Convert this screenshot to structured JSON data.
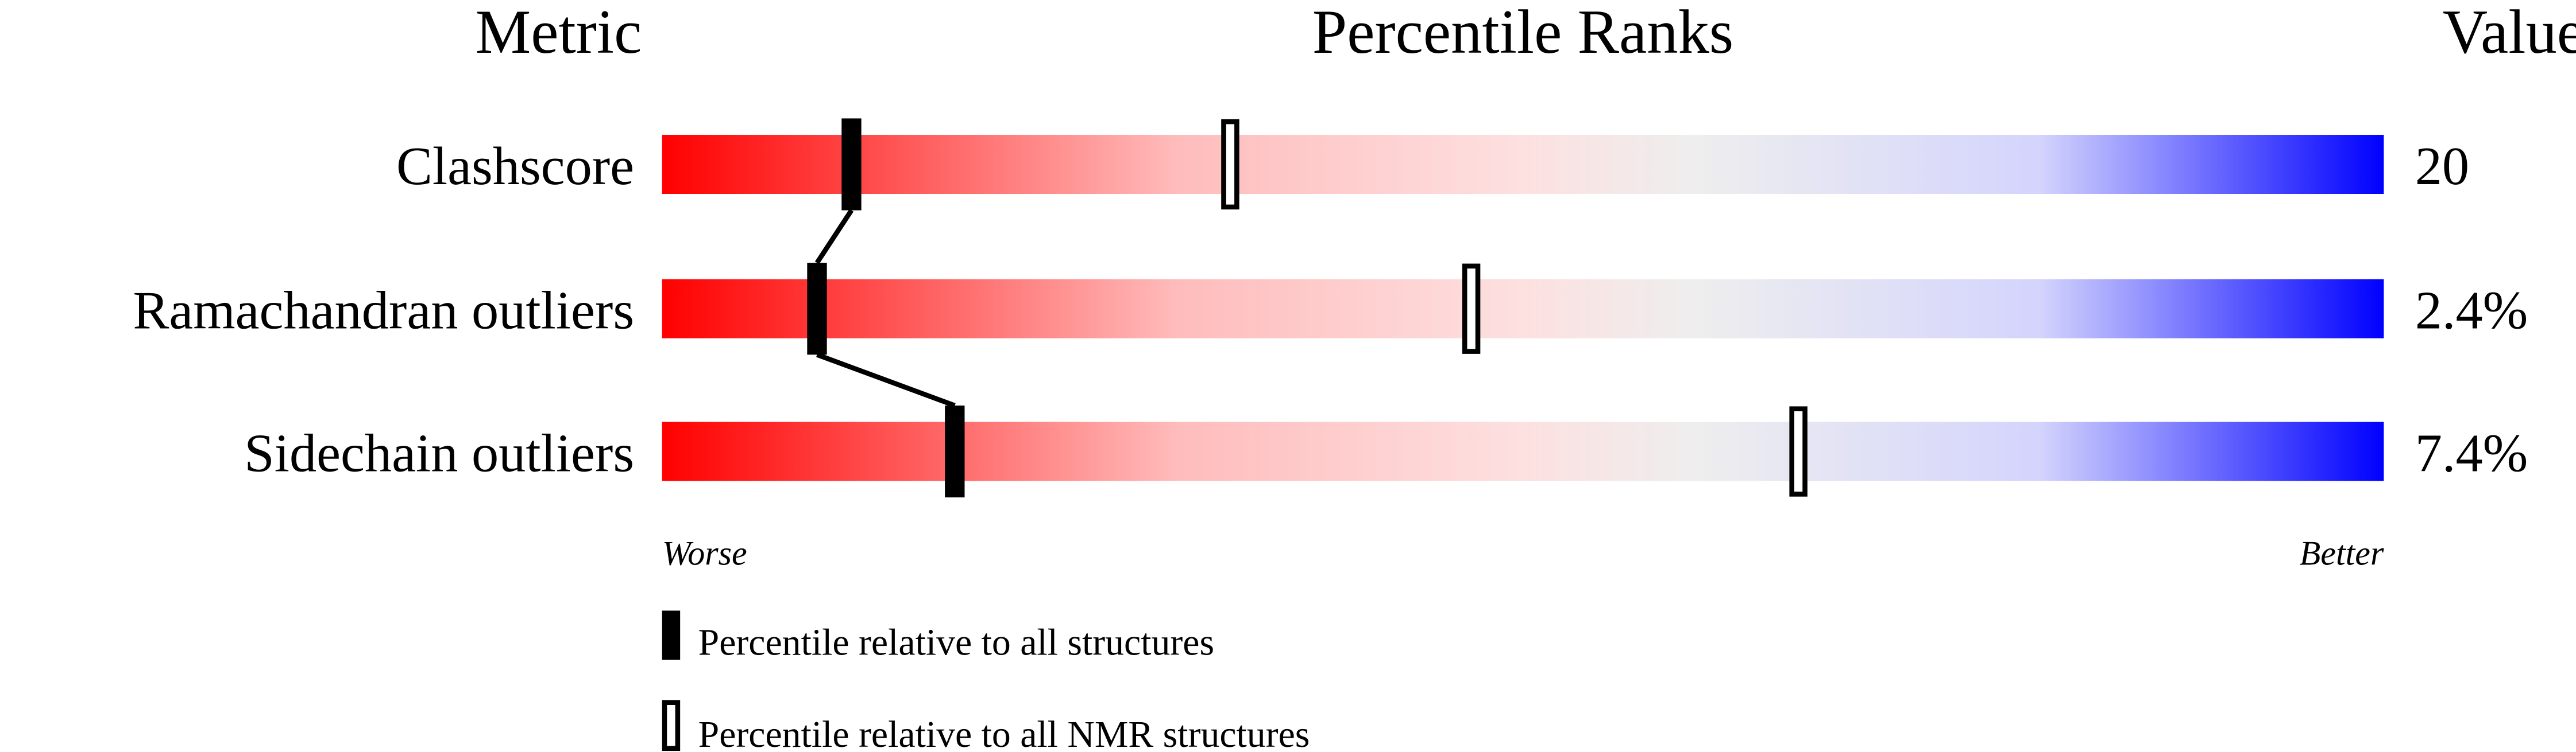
{
  "chart_data": {
    "type": "bar",
    "headers": {
      "metric": "Metric",
      "ranks": "Percentile Ranks",
      "value": "Value"
    },
    "xlim": [
      0,
      100
    ],
    "metrics": [
      {
        "name": "Clashscore",
        "value": "20",
        "percentile_all": 11,
        "percentile_nmr": 33
      },
      {
        "name": "Ramachandran outliers",
        "value": "2.4%",
        "percentile_all": 9,
        "percentile_nmr": 47
      },
      {
        "name": "Sidechain outliers",
        "value": "7.4%",
        "percentile_all": 17,
        "percentile_nmr": 66
      }
    ],
    "axis_labels": {
      "left": "Worse",
      "right": "Better"
    },
    "legend": [
      {
        "marker": "filled",
        "label": "Percentile relative to all structures"
      },
      {
        "marker": "open",
        "label": "Percentile relative to all NMR structures"
      }
    ],
    "colors": {
      "worse": "#ff0000",
      "middle": "#eeeeee",
      "better": "#0000ff",
      "marker": "#000000"
    }
  }
}
